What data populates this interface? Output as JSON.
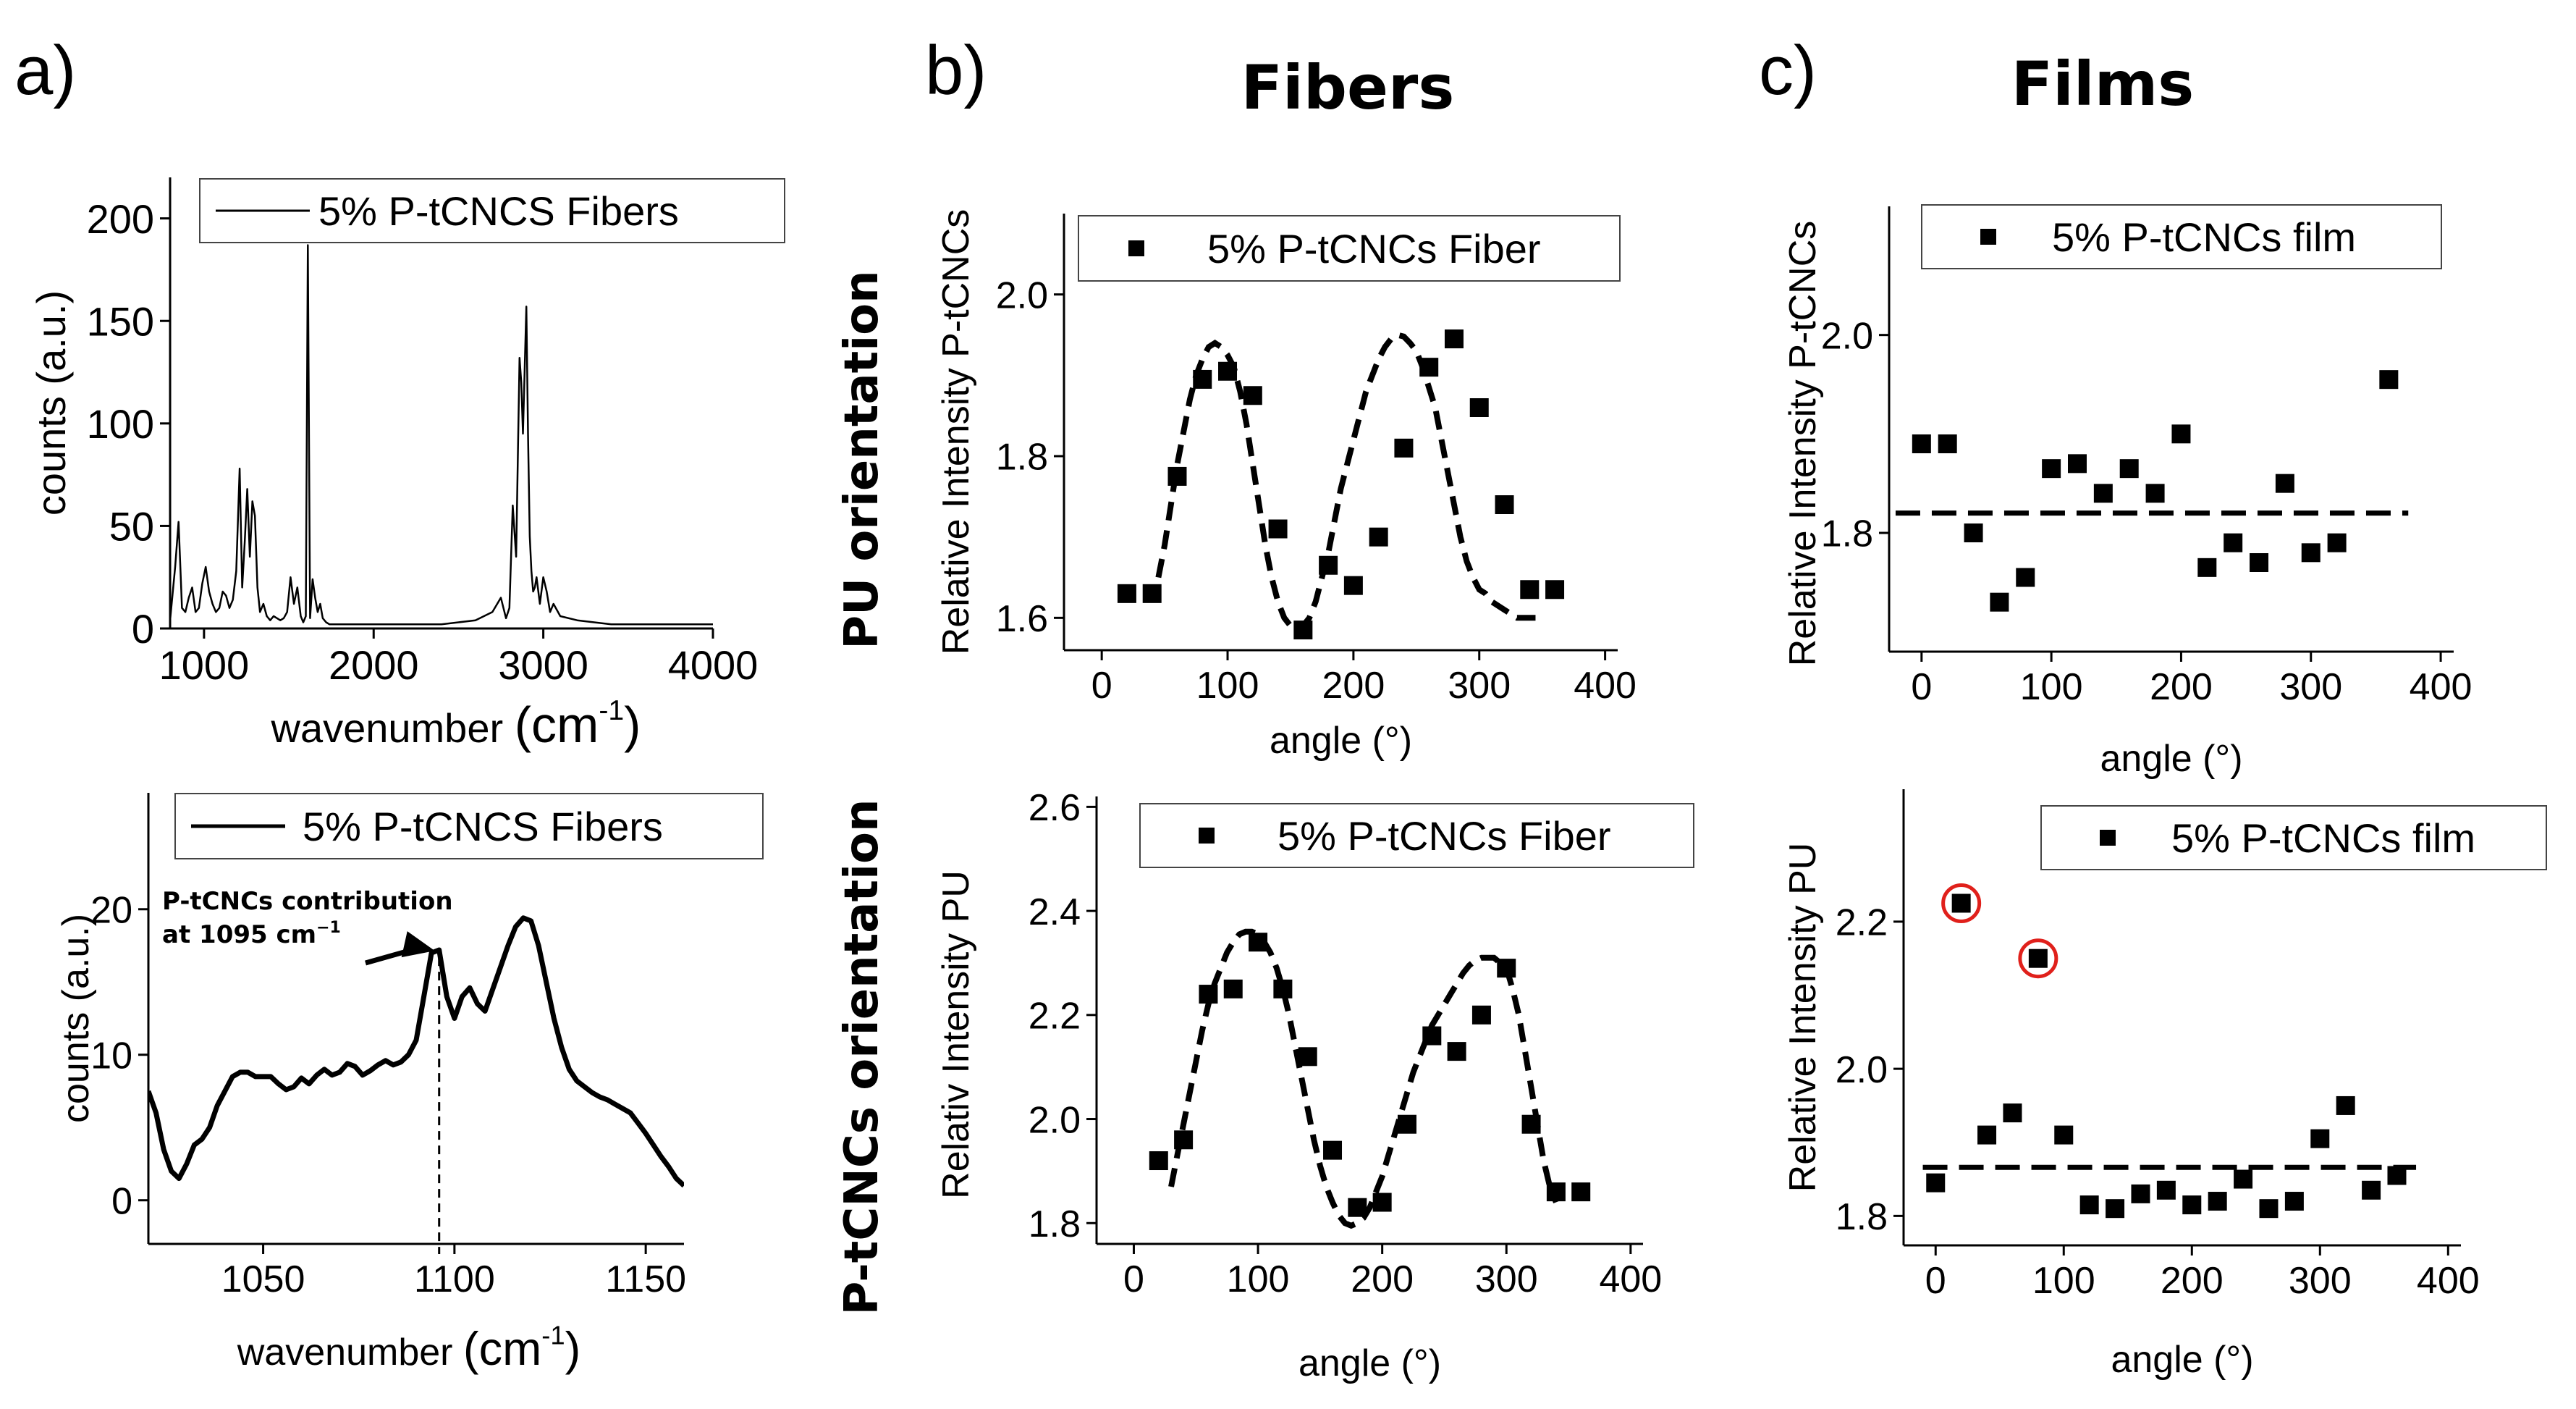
{
  "panel_letters": [
    "a)",
    "b)",
    "c)"
  ],
  "column_titles": {
    "fibers": "Fibers",
    "films": "Films"
  },
  "row_titles": {
    "pu": "PU orientation",
    "ptcncs": "P-tCNCs orientation"
  },
  "colors": {
    "ink": "#000000",
    "highlight": "#e0201b"
  },
  "chart_data": [
    {
      "id": "a_top",
      "type": "line",
      "title": "",
      "xlabel": "wavenumber",
      "xlabel_unit": "(cm",
      "xlabel_unit_exp": "-1",
      "xlabel_unit_close": ")",
      "ylabel": "counts (a.u.)",
      "xlim": [
        800,
        4000
      ],
      "ylim": [
        0,
        220
      ],
      "xticks": [
        1000,
        2000,
        3000,
        4000
      ],
      "yticks": [
        0,
        50,
        100,
        150,
        200
      ],
      "legend": "top",
      "series": [
        {
          "name": "5% P-tCNCS  Fibers",
          "x": [
            800,
            830,
            850,
            870,
            890,
            910,
            930,
            950,
            970,
            990,
            1010,
            1030,
            1050,
            1070,
            1090,
            1110,
            1130,
            1150,
            1170,
            1190,
            1210,
            1225,
            1240,
            1255,
            1270,
            1285,
            1300,
            1315,
            1330,
            1350,
            1370,
            1390,
            1410,
            1430,
            1450,
            1470,
            1490,
            1510,
            1530,
            1550,
            1570,
            1585,
            1600,
            1612,
            1625,
            1640,
            1655,
            1670,
            1685,
            1700,
            1720,
            1740,
            1760,
            1800,
            1900,
            2000,
            2100,
            2200,
            2300,
            2400,
            2500,
            2600,
            2700,
            2750,
            2780,
            2800,
            2820,
            2840,
            2860,
            2870,
            2880,
            2890,
            2900,
            2910,
            2920,
            2930,
            2940,
            2950,
            2960,
            2980,
            3000,
            3020,
            3040,
            3060,
            3100,
            3200,
            3300,
            3400,
            3500,
            3600,
            3800,
            4000
          ],
          "y": [
            4,
            30,
            52,
            10,
            8,
            15,
            20,
            8,
            10,
            22,
            30,
            18,
            12,
            8,
            10,
            18,
            16,
            10,
            14,
            28,
            78,
            20,
            42,
            68,
            35,
            62,
            55,
            20,
            8,
            12,
            6,
            4,
            6,
            5,
            4,
            5,
            8,
            25,
            12,
            20,
            6,
            3,
            6,
            187,
            5,
            24,
            15,
            8,
            12,
            5,
            3,
            2,
            2,
            2,
            2,
            2,
            2,
            2,
            2,
            2,
            3,
            4,
            8,
            15,
            5,
            10,
            60,
            35,
            132,
            120,
            95,
            125,
            157,
            95,
            45,
            28,
            18,
            20,
            25,
            12,
            25,
            18,
            8,
            12,
            6,
            4,
            3,
            2,
            2,
            2,
            2,
            2
          ]
        }
      ]
    },
    {
      "id": "a_bottom",
      "type": "line",
      "title": "",
      "xlabel": "wavenumber",
      "xlabel_unit": "(cm",
      "xlabel_unit_exp": "-1",
      "xlabel_unit_close": ")",
      "ylabel": "counts (a.u.)",
      "xlim": [
        1020,
        1160
      ],
      "ylim": [
        -3,
        28
      ],
      "xticks": [
        1050,
        1100,
        1150
      ],
      "yticks": [
        0,
        10,
        20
      ],
      "legend": "top",
      "annotation": {
        "line1": "P-tCNCs contribution",
        "line2": "at 1095 cm",
        "exp": "−1",
        "x": 1096,
        "y": 17
      },
      "series": [
        {
          "name": "5% P-tCNCS  Fibers",
          "x": [
            1020,
            1022,
            1024,
            1026,
            1028,
            1030,
            1032,
            1034,
            1036,
            1038,
            1040,
            1042,
            1044,
            1046,
            1048,
            1050,
            1052,
            1054,
            1056,
            1058,
            1060,
            1062,
            1064,
            1066,
            1068,
            1070,
            1072,
            1074,
            1076,
            1078,
            1080,
            1082,
            1084,
            1086,
            1088,
            1090,
            1092,
            1094,
            1096,
            1098,
            1100,
            1102,
            1104,
            1106,
            1108,
            1110,
            1112,
            1114,
            1116,
            1118,
            1120,
            1122,
            1124,
            1126,
            1128,
            1130,
            1132,
            1134,
            1136,
            1138,
            1140,
            1142,
            1144,
            1146,
            1148,
            1150,
            1152,
            1154,
            1156,
            1158,
            1160
          ],
          "y": [
            7.5,
            6,
            3.5,
            2,
            1.5,
            2.5,
            3.8,
            4.2,
            5,
            6.5,
            7.5,
            8.5,
            8.8,
            8.8,
            8.5,
            8.5,
            8.5,
            8,
            7.6,
            7.8,
            8.4,
            8,
            8.6,
            9,
            8.6,
            8.8,
            9.4,
            9.2,
            8.6,
            8.9,
            9.3,
            9.6,
            9.3,
            9.5,
            10,
            11,
            14,
            17,
            17.2,
            14,
            12.5,
            14,
            14.6,
            13.5,
            13,
            14.5,
            16,
            17.5,
            18.8,
            19.4,
            19.2,
            17.5,
            15,
            12.5,
            10.5,
            9,
            8.2,
            7.8,
            7.4,
            7.1,
            6.9,
            6.6,
            6.3,
            6,
            5.3,
            4.6,
            3.8,
            3,
            2.3,
            1.5,
            1.0
          ]
        }
      ]
    },
    {
      "id": "b_top",
      "type": "scatter",
      "xlabel": "angle (°)",
      "ylabel": "Relative Intensity P-tCNCs",
      "xlim": [
        -30,
        410
      ],
      "ylim": [
        1.56,
        2.1
      ],
      "xticks": [
        0,
        100,
        200,
        300,
        400
      ],
      "yticks": [
        1.6,
        1.8,
        2.0
      ],
      "ytick_labels": [
        "1.6",
        "1.8",
        "2.0"
      ],
      "legend": "top",
      "series": [
        {
          "name": "5% P-tCNCs Fiber",
          "x": [
            20,
            40,
            60,
            80,
            100,
            120,
            140,
            160,
            180,
            200,
            220,
            240,
            260,
            280,
            300,
            320,
            340,
            360
          ],
          "y": [
            1.63,
            1.63,
            1.775,
            1.895,
            1.905,
            1.875,
            1.71,
            1.585,
            1.665,
            1.64,
            1.7,
            1.81,
            1.91,
            1.945,
            1.86,
            1.74,
            1.635,
            1.635
          ]
        }
      ],
      "fit": {
        "name": "fit",
        "x": [
          45,
          50,
          55,
          60,
          65,
          70,
          75,
          80,
          85,
          90,
          95,
          100,
          105,
          110,
          115,
          120,
          125,
          130,
          135,
          140,
          145,
          150,
          155,
          160,
          165,
          170,
          175,
          180,
          185,
          190,
          195,
          200,
          205,
          210,
          215,
          220,
          225,
          230,
          235,
          240,
          245,
          250,
          255,
          260,
          265,
          270,
          275,
          280,
          285,
          290,
          295,
          300,
          305,
          310,
          315,
          320,
          325,
          330,
          335,
          340,
          345
        ],
        "y": [
          1.65,
          1.69,
          1.74,
          1.79,
          1.83,
          1.87,
          1.9,
          1.92,
          1.935,
          1.94,
          1.935,
          1.925,
          1.91,
          1.88,
          1.84,
          1.79,
          1.74,
          1.69,
          1.65,
          1.62,
          1.6,
          1.59,
          1.585,
          1.59,
          1.6,
          1.62,
          1.65,
          1.68,
          1.72,
          1.76,
          1.79,
          1.82,
          1.85,
          1.88,
          1.9,
          1.92,
          1.935,
          1.945,
          1.95,
          1.948,
          1.94,
          1.93,
          1.91,
          1.885,
          1.86,
          1.82,
          1.78,
          1.74,
          1.7,
          1.67,
          1.65,
          1.635,
          1.63,
          1.62,
          1.615,
          1.61,
          1.605,
          1.6,
          1.6,
          1.6,
          1.6
        ]
      }
    },
    {
      "id": "b_bottom",
      "type": "scatter",
      "xlabel": "angle (°)",
      "ylabel": "Relativ Intensity PU",
      "xlim": [
        -30,
        410
      ],
      "ylim": [
        1.76,
        2.62
      ],
      "xticks": [
        0,
        100,
        200,
        300,
        400
      ],
      "yticks": [
        1.8,
        2.0,
        2.2,
        2.4,
        2.6
      ],
      "ytick_labels": [
        "1.8",
        "2.0",
        "2.2",
        "2.4",
        "2.6"
      ],
      "legend": "top",
      "series": [
        {
          "name": "5% P-tCNCs Fiber",
          "x": [
            20,
            40,
            60,
            80,
            100,
            120,
            140,
            160,
            180,
            200,
            220,
            240,
            260,
            280,
            300,
            320,
            340,
            360
          ],
          "y": [
            1.92,
            1.96,
            2.24,
            2.25,
            2.34,
            2.25,
            2.12,
            1.94,
            1.83,
            1.84,
            1.99,
            2.16,
            2.13,
            2.2,
            2.29,
            1.99,
            1.86,
            1.86
          ]
        }
      ],
      "fit": {
        "name": "fit",
        "x": [
          30,
          35,
          40,
          45,
          50,
          55,
          60,
          65,
          70,
          75,
          80,
          85,
          90,
          95,
          100,
          105,
          110,
          115,
          120,
          125,
          130,
          135,
          140,
          145,
          150,
          155,
          160,
          165,
          170,
          175,
          180,
          185,
          190,
          195,
          200,
          205,
          210,
          215,
          220,
          225,
          230,
          235,
          240,
          245,
          250,
          255,
          260,
          265,
          270,
          275,
          280,
          285,
          290,
          295,
          300,
          305,
          310,
          315,
          320,
          325,
          330,
          335,
          340
        ],
        "y": [
          1.87,
          1.93,
          1.99,
          2.05,
          2.11,
          2.17,
          2.22,
          2.26,
          2.29,
          2.32,
          2.34,
          2.355,
          2.36,
          2.36,
          2.355,
          2.34,
          2.32,
          2.29,
          2.25,
          2.2,
          2.14,
          2.08,
          2.02,
          1.96,
          1.91,
          1.87,
          1.84,
          1.815,
          1.8,
          1.795,
          1.8,
          1.81,
          1.83,
          1.86,
          1.89,
          1.93,
          1.97,
          2.01,
          2.05,
          2.09,
          2.12,
          2.15,
          2.18,
          2.2,
          2.22,
          2.24,
          2.26,
          2.28,
          2.295,
          2.305,
          2.31,
          2.31,
          2.31,
          2.3,
          2.29,
          2.25,
          2.2,
          2.13,
          2.06,
          1.99,
          1.92,
          1.87,
          1.84
        ]
      }
    },
    {
      "id": "c_top",
      "type": "scatter",
      "xlabel": "angle (°)",
      "ylabel": "Relative Intensity P-tCNCs",
      "xlim": [
        -25,
        410
      ],
      "ylim": [
        1.68,
        2.13
      ],
      "xticks": [
        0,
        100,
        200,
        300,
        400
      ],
      "yticks": [
        1.8,
        2.0
      ],
      "ytick_labels": [
        "1.8",
        "2.0"
      ],
      "legend": "top",
      "series": [
        {
          "name": "5% P-tCNCs film",
          "x": [
            0,
            20,
            40,
            60,
            80,
            100,
            120,
            140,
            160,
            180,
            200,
            220,
            240,
            260,
            280,
            300,
            320,
            360
          ],
          "y": [
            1.89,
            1.89,
            1.8,
            1.73,
            1.755,
            1.865,
            1.87,
            1.84,
            1.865,
            1.84,
            1.9,
            1.765,
            1.79,
            1.77,
            1.85,
            1.78,
            1.79,
            1.955
          ]
        }
      ],
      "mean_line": {
        "y": 1.82,
        "x": [
          -20,
          375
        ]
      }
    },
    {
      "id": "c_bottom",
      "type": "scatter",
      "xlabel": "angle (°)",
      "ylabel": "Relative Intensity PU",
      "xlim": [
        -25,
        410
      ],
      "ylim": [
        1.76,
        2.38
      ],
      "xticks": [
        0,
        100,
        200,
        300,
        400
      ],
      "yticks": [
        1.8,
        2.0,
        2.2
      ],
      "ytick_labels": [
        "1.8",
        "2.0",
        "2.2"
      ],
      "legend": "top",
      "series": [
        {
          "name": "5% P-tCNCs film",
          "x": [
            0,
            20,
            40,
            60,
            80,
            100,
            120,
            140,
            160,
            180,
            200,
            220,
            240,
            260,
            280,
            300,
            320,
            340,
            360
          ],
          "y": [
            1.845,
            2.225,
            1.91,
            1.94,
            2.15,
            1.91,
            1.815,
            1.81,
            1.83,
            1.835,
            1.815,
            1.82,
            1.85,
            1.81,
            1.82,
            1.905,
            1.95,
            1.835,
            1.855
          ]
        }
      ],
      "mean_line": {
        "y": 1.866,
        "x": [
          -10,
          375
        ]
      },
      "highlighted_points": [
        {
          "x": 20,
          "y": 2.225
        },
        {
          "x": 80,
          "y": 2.15
        }
      ]
    }
  ]
}
